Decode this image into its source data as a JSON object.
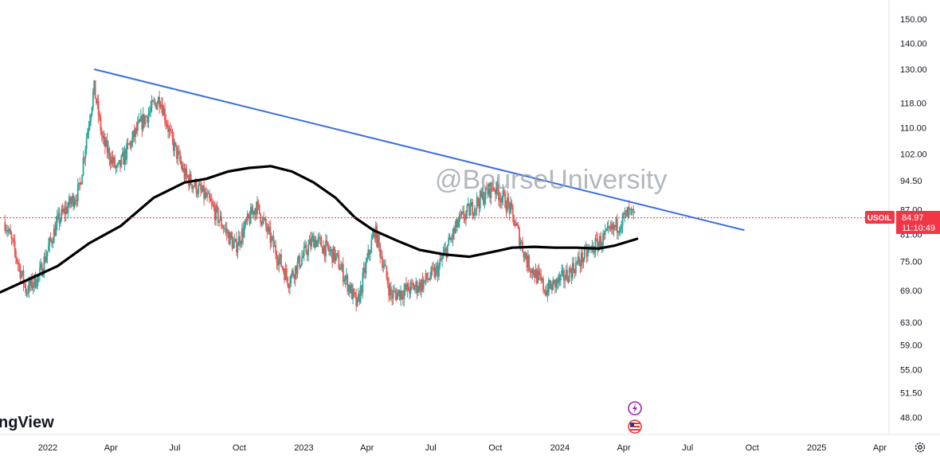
{
  "watermark": "@BourseUniversity",
  "brand": "ngView",
  "price_label": {
    "symbol": "USOIL",
    "price": "84.97",
    "countdown": "11:10:49",
    "color": "#f23645"
  },
  "icons": [
    "lightning-icon",
    "us-flag-icon",
    "settings-gear-icon"
  ],
  "chart_data": {
    "type": "candlestick",
    "y_scale": "log",
    "y_ticks": [
      "150.00",
      "140.00",
      "130.00",
      "118.00",
      "110.00",
      "102.00",
      "94.50",
      "87.00",
      "81.00",
      "75.00",
      "69.00",
      "63.00",
      "59.00",
      "55.00",
      "51.50",
      "48.00"
    ],
    "x_ticks": [
      "2022",
      "Apr",
      "Jul",
      "Oct",
      "2023",
      "Apr",
      "Jul",
      "Oct",
      "2024",
      "Apr",
      "Jul",
      "Oct",
      "2025",
      "Apr"
    ],
    "x_tick_dates": [
      "2022-01-01",
      "2022-04-01",
      "2022-07-01",
      "2022-10-01",
      "2023-01-01",
      "2023-04-01",
      "2023-07-01",
      "2023-10-01",
      "2024-01-01",
      "2024-04-01",
      "2024-07-01",
      "2024-10-01",
      "2025-01-01",
      "2025-04-01"
    ],
    "current_price": 84.97,
    "colors": {
      "up": "#26a69a",
      "down": "#ef5350",
      "trendline": "#3a6fe0",
      "moving_average": "#000000"
    },
    "price_path": [
      [
        "2021-11-01",
        84
      ],
      [
        "2021-12-01",
        69
      ],
      [
        "2021-12-20",
        72
      ],
      [
        "2022-01-15",
        84
      ],
      [
        "2022-02-15",
        92
      ],
      [
        "2022-03-08",
        123
      ],
      [
        "2022-03-20",
        106
      ],
      [
        "2022-04-10",
        97
      ],
      [
        "2022-05-10",
        110
      ],
      [
        "2022-06-10",
        120
      ],
      [
        "2022-06-25",
        107
      ],
      [
        "2022-07-15",
        96
      ],
      [
        "2022-08-15",
        90
      ],
      [
        "2022-09-25",
        78
      ],
      [
        "2022-10-25",
        88
      ],
      [
        "2022-11-25",
        76
      ],
      [
        "2022-12-10",
        71
      ],
      [
        "2023-01-15",
        80
      ],
      [
        "2023-02-15",
        76
      ],
      [
        "2023-03-18",
        66
      ],
      [
        "2023-04-12",
        82
      ],
      [
        "2023-05-05",
        68
      ],
      [
        "2023-06-15",
        70
      ],
      [
        "2023-07-10",
        73
      ],
      [
        "2023-08-10",
        84
      ],
      [
        "2023-09-28",
        93
      ],
      [
        "2023-10-20",
        88
      ],
      [
        "2023-11-15",
        75
      ],
      [
        "2023-12-12",
        69
      ],
      [
        "2024-01-10",
        72
      ],
      [
        "2024-02-10",
        77
      ],
      [
        "2024-03-10",
        81
      ],
      [
        "2024-04-08",
        86
      ],
      [
        "2024-04-17",
        85
      ]
    ],
    "moving_average": [
      [
        "2021-10-15",
        68
      ],
      [
        "2021-12-01",
        71
      ],
      [
        "2022-01-15",
        74
      ],
      [
        "2022-03-01",
        79
      ],
      [
        "2022-04-15",
        83
      ],
      [
        "2022-06-01",
        90
      ],
      [
        "2022-07-15",
        94
      ],
      [
        "2022-08-15",
        95
      ],
      [
        "2022-09-15",
        97
      ],
      [
        "2022-10-15",
        98
      ],
      [
        "2022-11-15",
        98.5
      ],
      [
        "2022-12-15",
        97
      ],
      [
        "2023-01-15",
        94
      ],
      [
        "2023-02-15",
        90
      ],
      [
        "2023-03-15",
        85
      ],
      [
        "2023-04-10",
        82
      ],
      [
        "2023-05-15",
        79.5
      ],
      [
        "2023-06-15",
        77.5
      ],
      [
        "2023-07-20",
        76.5
      ],
      [
        "2023-08-25",
        76
      ],
      [
        "2023-09-25",
        77
      ],
      [
        "2023-10-25",
        78
      ],
      [
        "2023-11-25",
        78.2
      ],
      [
        "2023-12-25",
        78
      ],
      [
        "2024-01-25",
        78
      ],
      [
        "2024-02-25",
        77.8
      ],
      [
        "2024-03-20",
        78.5
      ],
      [
        "2024-04-20",
        80
      ]
    ],
    "trendline": [
      [
        "2022-03-08",
        130
      ],
      [
        "2024-09-20",
        82
      ]
    ]
  }
}
